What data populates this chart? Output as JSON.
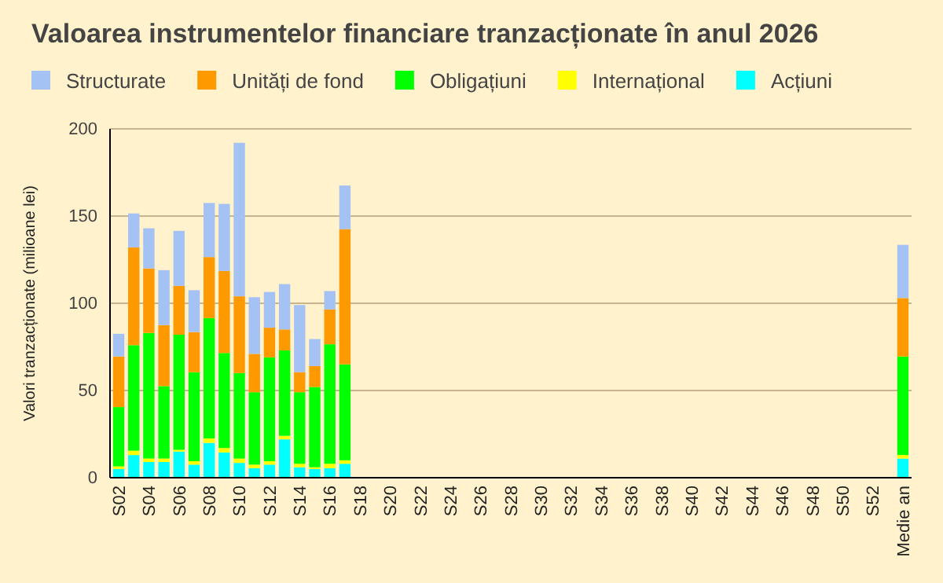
{
  "chart_data": {
    "type": "bar",
    "stacked": true,
    "title": "Valoarea instrumentelor financiare tranzacționate în anul 2026",
    "ylabel": "Valori tranzacționate (milioane lei)",
    "categories": [
      "S02",
      null,
      "S04",
      null,
      "S06",
      null,
      "S08",
      null,
      "S10",
      null,
      "S12",
      null,
      "S14",
      null,
      "S16",
      null,
      "S18",
      null,
      "S20",
      null,
      "S22",
      null,
      "S24",
      null,
      "S26",
      null,
      "S28",
      null,
      "S30",
      null,
      "S32",
      null,
      "S34",
      null,
      "S36",
      null,
      "S38",
      null,
      "S40",
      null,
      "S42",
      null,
      "S44",
      null,
      "S46",
      null,
      "S48",
      null,
      "S50",
      null,
      "S52",
      null,
      "Medie an"
    ],
    "ylim": [
      0,
      200
    ],
    "yticks": [
      0,
      50,
      100,
      150,
      200
    ],
    "grid": "y",
    "legend": "top",
    "series": [
      {
        "name": "Acțiuni",
        "color": "#00ffff",
        "values": [
          5,
          13,
          9,
          9,
          15,
          7.5,
          20,
          14.5,
          8.5,
          5.5,
          7.5,
          22,
          6,
          5,
          5.5,
          8,
          null,
          null,
          null,
          null,
          null,
          null,
          null,
          null,
          null,
          null,
          null,
          null,
          null,
          null,
          null,
          null,
          null,
          null,
          null,
          null,
          null,
          null,
          null,
          null,
          null,
          null,
          null,
          null,
          null,
          null,
          null,
          null,
          null,
          null,
          null,
          null,
          11
        ]
      },
      {
        "name": "Internațional",
        "color": "#ffff00",
        "values": [
          1.5,
          2.5,
          2,
          2,
          1,
          2,
          2.5,
          2.5,
          2.5,
          2,
          2,
          2,
          2,
          1,
          2.5,
          2,
          null,
          null,
          null,
          null,
          null,
          null,
          null,
          null,
          null,
          null,
          null,
          null,
          null,
          null,
          null,
          null,
          null,
          null,
          null,
          null,
          null,
          null,
          null,
          null,
          null,
          null,
          null,
          null,
          null,
          null,
          null,
          null,
          null,
          null,
          null,
          null,
          2
        ]
      },
      {
        "name": "Obligațiuni",
        "color": "#00ff00",
        "values": [
          34,
          60.5,
          72,
          41.5,
          66,
          51,
          69,
          54.5,
          49,
          41.5,
          59.5,
          49,
          41,
          46,
          68.5,
          55,
          null,
          null,
          null,
          null,
          null,
          null,
          null,
          null,
          null,
          null,
          null,
          null,
          null,
          null,
          null,
          null,
          null,
          null,
          null,
          null,
          null,
          null,
          null,
          null,
          null,
          null,
          null,
          null,
          null,
          null,
          null,
          null,
          null,
          null,
          null,
          null,
          56.5
        ]
      },
      {
        "name": "Unități de fond",
        "color": "#ff9900",
        "values": [
          29,
          56,
          37,
          35,
          28,
          23,
          35,
          47,
          44,
          22,
          17,
          12,
          11.5,
          12,
          20,
          77.5,
          null,
          null,
          null,
          null,
          null,
          null,
          null,
          null,
          null,
          null,
          null,
          null,
          null,
          null,
          null,
          null,
          null,
          null,
          null,
          null,
          null,
          null,
          null,
          null,
          null,
          null,
          null,
          null,
          null,
          null,
          null,
          null,
          null,
          null,
          null,
          null,
          33.5
        ]
      },
      {
        "name": "Structurate",
        "color": "#a4c2f4",
        "values": [
          13,
          19.5,
          23,
          31.5,
          31.5,
          24,
          31,
          38.5,
          88,
          32.5,
          20.5,
          26,
          38.5,
          15.5,
          10.5,
          25,
          null,
          null,
          null,
          null,
          null,
          null,
          null,
          null,
          null,
          null,
          null,
          null,
          null,
          null,
          null,
          null,
          null,
          null,
          null,
          null,
          null,
          null,
          null,
          null,
          null,
          null,
          null,
          null,
          null,
          null,
          null,
          null,
          null,
          null,
          null,
          null,
          30.5
        ]
      }
    ]
  }
}
